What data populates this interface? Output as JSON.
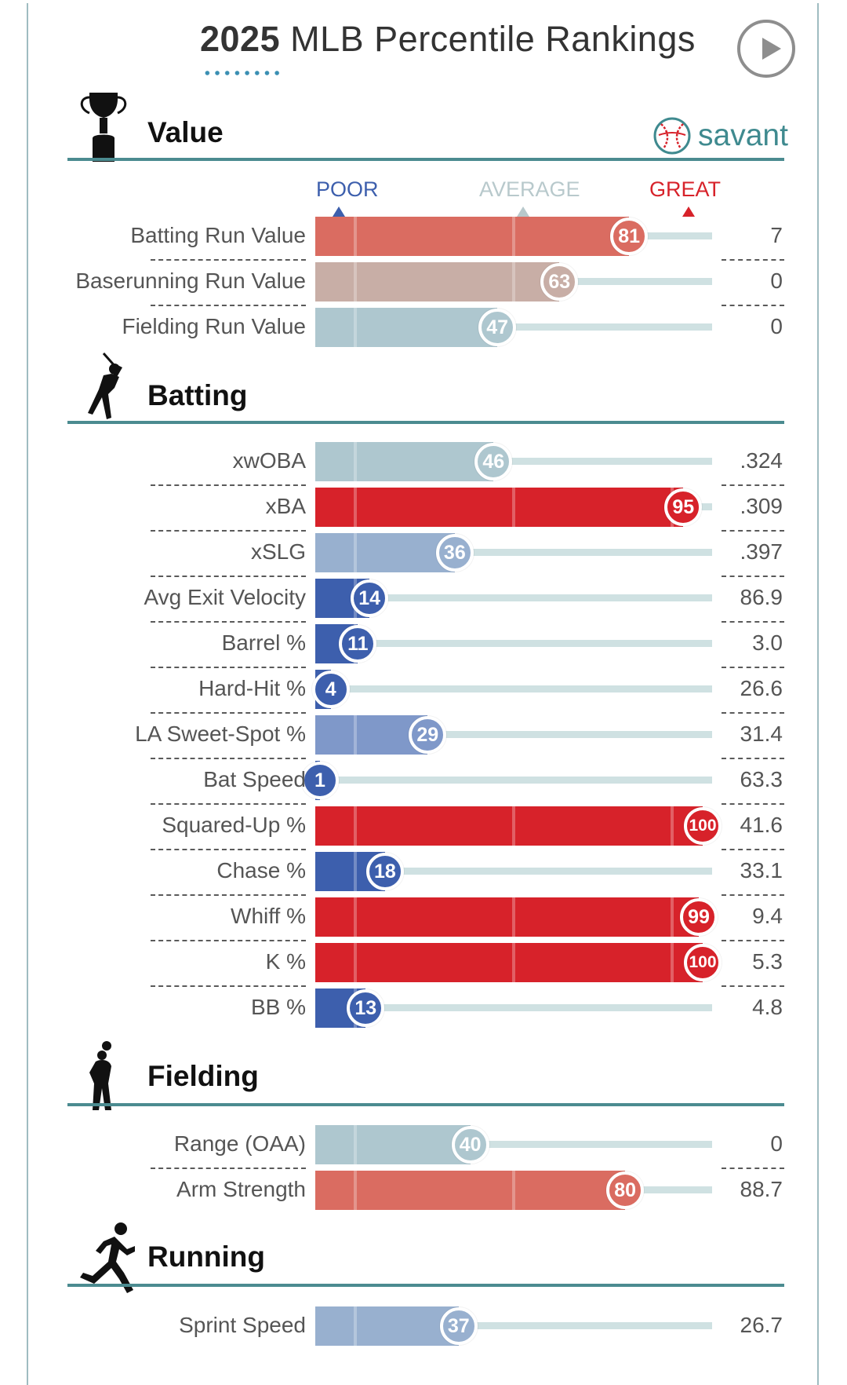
{
  "header": {
    "title_year": "2025",
    "title_rest": "MLB Percentile Rankings",
    "play_icon": "play-icon"
  },
  "brand": {
    "logo_text": "savant",
    "logo_icon": "baseball-icon"
  },
  "scale": {
    "poor": "POOR",
    "average": "AVERAGE",
    "great": "GREAT"
  },
  "colors": {
    "poor": "#3d5fad",
    "average": "#b5b5b5",
    "great": "#d7222a",
    "track": "#cfe1e2",
    "rule": "#4b8b90"
  },
  "chart_data": {
    "type": "bar",
    "title": "2025 MLB Percentile Rankings",
    "xlim": [
      0,
      100
    ],
    "sections": [
      {
        "name": "Value",
        "icon": "trophy-icon",
        "metrics": [
          {
            "label": "Batting Run Value",
            "percentile": 81,
            "value": "7"
          },
          {
            "label": "Baserunning Run Value",
            "percentile": 63,
            "value": "0"
          },
          {
            "label": "Fielding Run Value",
            "percentile": 47,
            "value": "0"
          }
        ]
      },
      {
        "name": "Batting",
        "icon": "batter-icon",
        "metrics": [
          {
            "label": "xwOBA",
            "percentile": 46,
            "value": ".324"
          },
          {
            "label": "xBA",
            "percentile": 95,
            "value": ".309"
          },
          {
            "label": "xSLG",
            "percentile": 36,
            "value": ".397"
          },
          {
            "label": "Avg Exit Velocity",
            "percentile": 14,
            "value": "86.9"
          },
          {
            "label": "Barrel %",
            "percentile": 11,
            "value": "3.0"
          },
          {
            "label": "Hard-Hit %",
            "percentile": 4,
            "value": "26.6"
          },
          {
            "label": "LA Sweet-Spot %",
            "percentile": 29,
            "value": "31.4"
          },
          {
            "label": "Bat Speed",
            "percentile": 1,
            "value": "63.3"
          },
          {
            "label": "Squared-Up %",
            "percentile": 100,
            "value": "41.6"
          },
          {
            "label": "Chase %",
            "percentile": 18,
            "value": "33.1"
          },
          {
            "label": "Whiff %",
            "percentile": 99,
            "value": "9.4"
          },
          {
            "label": "K %",
            "percentile": 100,
            "value": "5.3"
          },
          {
            "label": "BB %",
            "percentile": 13,
            "value": "4.8"
          }
        ]
      },
      {
        "name": "Fielding",
        "icon": "fielder-icon",
        "metrics": [
          {
            "label": "Range (OAA)",
            "percentile": 40,
            "value": "0"
          },
          {
            "label": "Arm Strength",
            "percentile": 80,
            "value": "88.7"
          }
        ]
      },
      {
        "name": "Running",
        "icon": "runner-icon",
        "metrics": [
          {
            "label": "Sprint Speed",
            "percentile": 37,
            "value": "26.7"
          }
        ]
      }
    ]
  }
}
